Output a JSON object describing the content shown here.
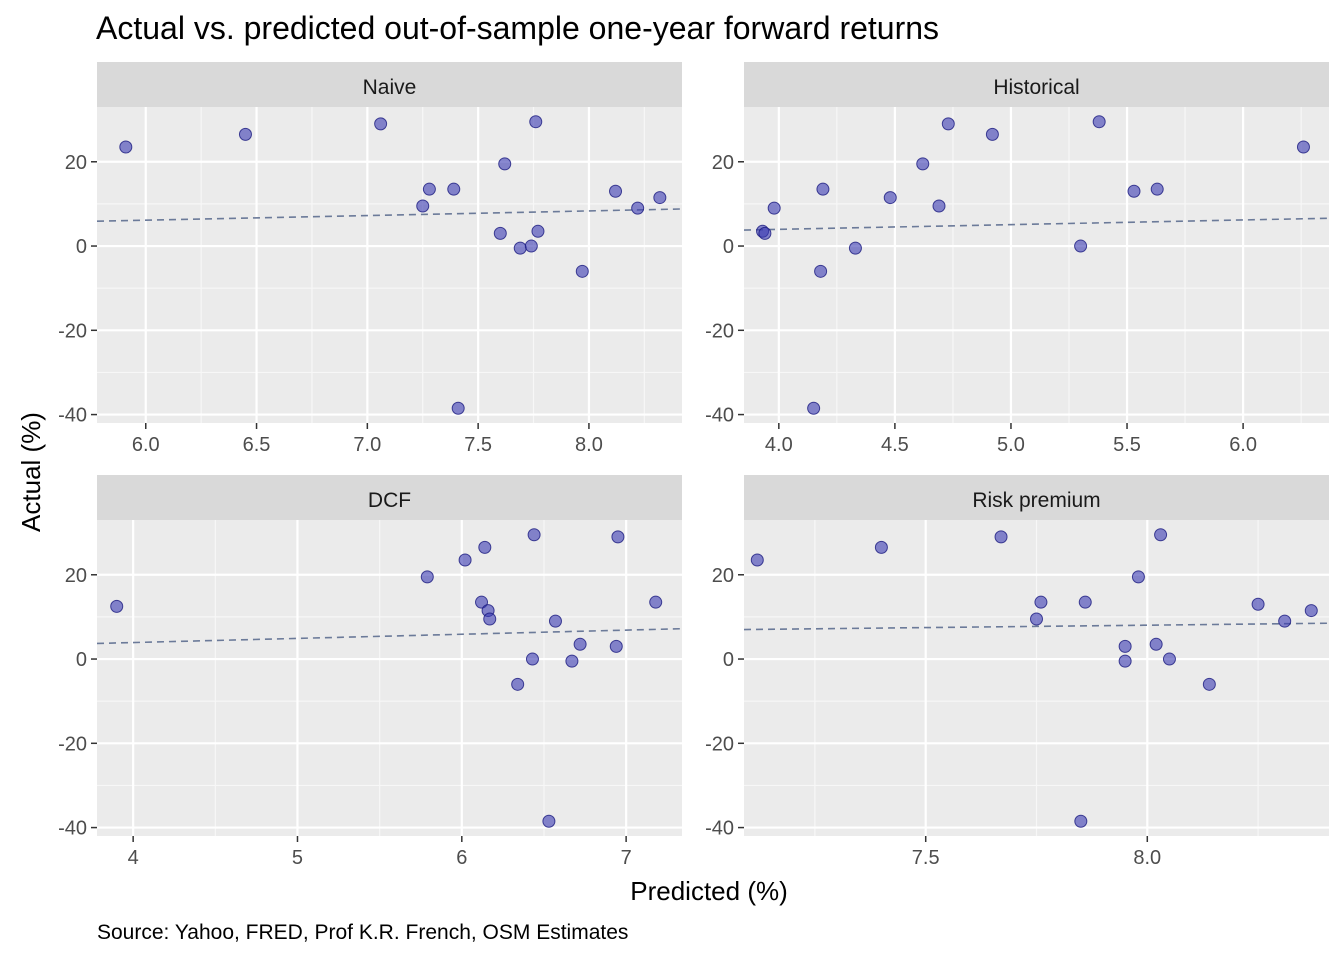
{
  "chart_data": {
    "type": "scatter",
    "title": "Actual vs. predicted out-of-sample one-year forward returns",
    "xlabel": "Predicted (%)",
    "ylabel": "Actual (%)",
    "caption": "Source: Yahoo, FRED, Prof K.R. French, OSM Estimates",
    "grid": true,
    "point_color": "#3b3bb3",
    "fit_line_color": "#6b7a99",
    "panel_strip_color": "#d9d9d9",
    "panel_bg_color": "#ebebeb",
    "ylim": [
      -42,
      33
    ],
    "yticks": [
      -40,
      -20,
      0,
      20
    ],
    "panels": [
      {
        "name": "Naive",
        "xlim": [
          5.78,
          8.42
        ],
        "xticks": [
          6.0,
          6.5,
          7.0,
          7.5,
          8.0
        ],
        "xtick_labels": [
          "6.0",
          "6.5",
          "7.0",
          "7.5",
          "8.0"
        ],
        "fit": [
          [
            5.78,
            5.9
          ],
          [
            8.42,
            8.8
          ]
        ],
        "points": [
          {
            "x": 5.91,
            "y": 23.5
          },
          {
            "x": 6.45,
            "y": 26.5
          },
          {
            "x": 7.06,
            "y": 29.0
          },
          {
            "x": 7.25,
            "y": 9.5
          },
          {
            "x": 7.28,
            "y": 13.5
          },
          {
            "x": 7.39,
            "y": 13.5
          },
          {
            "x": 7.41,
            "y": -38.5
          },
          {
            "x": 7.6,
            "y": 3.0
          },
          {
            "x": 7.62,
            "y": 19.5
          },
          {
            "x": 7.69,
            "y": -0.5
          },
          {
            "x": 7.74,
            "y": 0.0
          },
          {
            "x": 7.76,
            "y": 29.5
          },
          {
            "x": 7.77,
            "y": 3.5
          },
          {
            "x": 7.97,
            "y": -6.0
          },
          {
            "x": 8.12,
            "y": 13.0
          },
          {
            "x": 8.22,
            "y": 9.0
          },
          {
            "x": 8.32,
            "y": 11.5
          }
        ]
      },
      {
        "name": "Historical",
        "xlim": [
          3.85,
          6.37
        ],
        "xticks": [
          4.0,
          4.5,
          5.0,
          5.5,
          6.0
        ],
        "xtick_labels": [
          "4.0",
          "4.5",
          "5.0",
          "5.5",
          "6.0"
        ],
        "fit": [
          [
            3.85,
            3.8
          ],
          [
            6.37,
            6.6
          ]
        ],
        "points": [
          {
            "x": 3.93,
            "y": 3.5
          },
          {
            "x": 3.94,
            "y": 3.0
          },
          {
            "x": 3.98,
            "y": 9.0
          },
          {
            "x": 4.15,
            "y": -38.5
          },
          {
            "x": 4.18,
            "y": -6.0
          },
          {
            "x": 4.19,
            "y": 13.5
          },
          {
            "x": 4.33,
            "y": -0.5
          },
          {
            "x": 4.48,
            "y": 11.5
          },
          {
            "x": 4.62,
            "y": 19.5
          },
          {
            "x": 4.69,
            "y": 9.5
          },
          {
            "x": 4.73,
            "y": 29.0
          },
          {
            "x": 4.92,
            "y": 26.5
          },
          {
            "x": 5.3,
            "y": 0.0
          },
          {
            "x": 5.38,
            "y": 29.5
          },
          {
            "x": 5.53,
            "y": 13.0
          },
          {
            "x": 5.63,
            "y": 13.5
          },
          {
            "x": 6.26,
            "y": 23.5
          }
        ]
      },
      {
        "name": "DCF",
        "xlim": [
          3.78,
          7.34
        ],
        "xticks": [
          4,
          5,
          6,
          7
        ],
        "xtick_labels": [
          "4",
          "5",
          "6",
          "7"
        ],
        "fit": [
          [
            3.78,
            3.7
          ],
          [
            7.34,
            7.2
          ]
        ],
        "points": [
          {
            "x": 3.9,
            "y": 12.5
          },
          {
            "x": 5.79,
            "y": 19.5
          },
          {
            "x": 6.02,
            "y": 23.5
          },
          {
            "x": 6.12,
            "y": 13.5
          },
          {
            "x": 6.14,
            "y": 26.5
          },
          {
            "x": 6.16,
            "y": 11.5
          },
          {
            "x": 6.17,
            "y": 9.5
          },
          {
            "x": 6.34,
            "y": -6.0
          },
          {
            "x": 6.43,
            "y": 0.0
          },
          {
            "x": 6.44,
            "y": 29.5
          },
          {
            "x": 6.53,
            "y": -38.5
          },
          {
            "x": 6.57,
            "y": 9.0
          },
          {
            "x": 6.67,
            "y": -0.5
          },
          {
            "x": 6.72,
            "y": 3.5
          },
          {
            "x": 6.94,
            "y": 3.0
          },
          {
            "x": 6.95,
            "y": 29.0
          },
          {
            "x": 7.18,
            "y": 13.5
          }
        ]
      },
      {
        "name": "Risk premium",
        "xlim": [
          7.09,
          8.41
        ],
        "xticks": [
          7.5,
          8.0
        ],
        "xtick_labels": [
          "7.5",
          "8.0"
        ],
        "fit": [
          [
            7.09,
            7.0
          ],
          [
            8.41,
            8.5
          ]
        ],
        "points": [
          {
            "x": 7.12,
            "y": 23.5
          },
          {
            "x": 7.4,
            "y": 26.5
          },
          {
            "x": 7.67,
            "y": 29.0
          },
          {
            "x": 7.75,
            "y": 9.5
          },
          {
            "x": 7.76,
            "y": 13.5
          },
          {
            "x": 7.85,
            "y": -38.5
          },
          {
            "x": 7.86,
            "y": 13.5
          },
          {
            "x": 7.95,
            "y": 3.0
          },
          {
            "x": 7.95,
            "y": -0.5
          },
          {
            "x": 7.98,
            "y": 19.5
          },
          {
            "x": 8.02,
            "y": 3.5
          },
          {
            "x": 8.03,
            "y": 29.5
          },
          {
            "x": 8.05,
            "y": 0.0
          },
          {
            "x": 8.14,
            "y": -6.0
          },
          {
            "x": 8.25,
            "y": 13.0
          },
          {
            "x": 8.31,
            "y": 9.0
          },
          {
            "x": 8.37,
            "y": 11.5
          }
        ]
      }
    ]
  }
}
